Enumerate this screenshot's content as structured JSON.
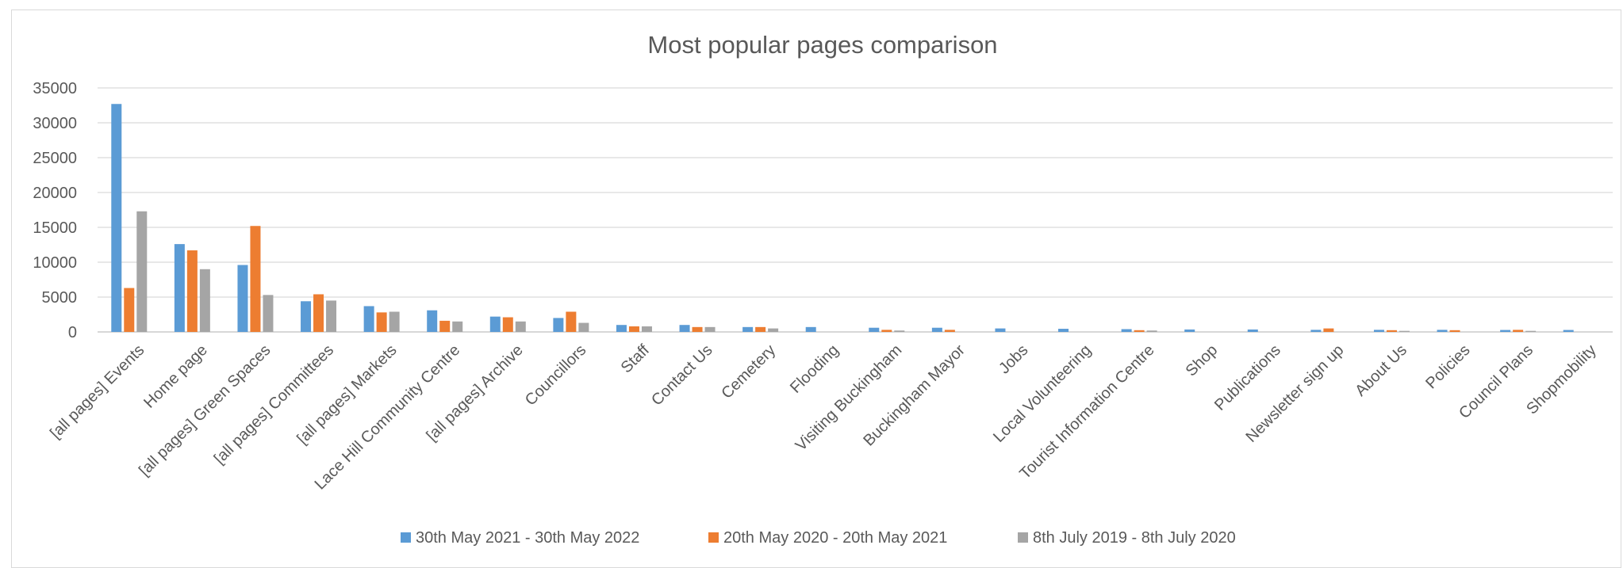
{
  "chart_data": {
    "type": "bar",
    "title": "Most popular pages comparison",
    "xlabel": "",
    "ylabel": "",
    "ylim": [
      0,
      35000
    ],
    "yticks": [
      0,
      5000,
      10000,
      15000,
      20000,
      25000,
      30000,
      35000
    ],
    "grid": true,
    "legend_position": "bottom",
    "categories": [
      "[all pages] Events",
      "Home page",
      "[all pages] Green Spaces",
      "[all pages] Committees",
      "[all pages] Markets",
      "Lace Hill Community Centre",
      "[all pages] Archive",
      "Councillors",
      "Staff",
      "Contact Us",
      "Cemetery",
      "Flooding",
      "Visiting Buckingham",
      "Buckingham Mayor",
      "Jobs",
      "Local Volunteering",
      "Tourist Information Centre",
      "Shop",
      "Publications",
      "Newsletter sign up",
      "About Us",
      "Policies",
      "Council Plans",
      "Shopmobility"
    ],
    "series": [
      {
        "name": "30th May 2021 - 30th May 2022",
        "color": "#5b9bd5",
        "values": [
          32700,
          12600,
          9600,
          4400,
          3700,
          3100,
          2200,
          2000,
          1000,
          1000,
          700,
          700,
          600,
          600,
          500,
          450,
          400,
          350,
          350,
          300,
          300,
          300,
          280,
          280
        ]
      },
      {
        "name": "20th May 2020 - 20th May 2021",
        "color": "#ed7d31",
        "values": [
          6300,
          11700,
          15200,
          5400,
          2800,
          1600,
          2100,
          2900,
          800,
          700,
          700,
          0,
          300,
          300,
          0,
          0,
          250,
          0,
          0,
          500,
          250,
          250,
          300,
          0
        ]
      },
      {
        "name": "8th July 2019 - 8th July 2020",
        "color": "#a5a5a5",
        "values": [
          17300,
          9000,
          5300,
          4500,
          2900,
          1500,
          1500,
          1300,
          800,
          700,
          500,
          0,
          200,
          0,
          0,
          0,
          200,
          0,
          0,
          0,
          150,
          0,
          150,
          0
        ]
      }
    ]
  }
}
